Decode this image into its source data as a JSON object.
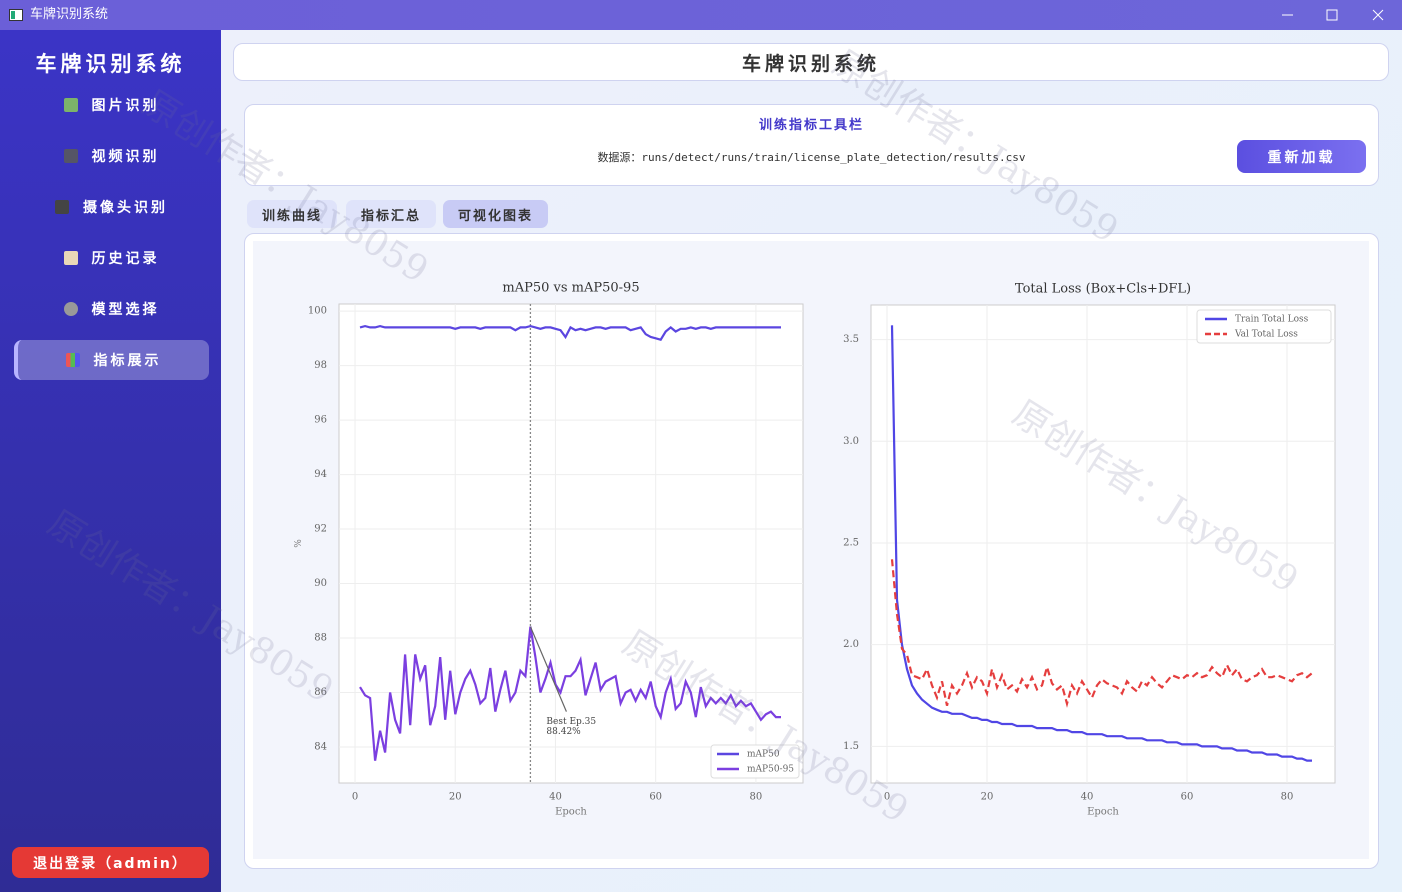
{
  "window": {
    "title": "车牌识别系统"
  },
  "sidebar": {
    "title": "车牌识别系统",
    "menu": [
      "图片识别",
      "视频识别",
      "摄像头识别",
      "历史记录",
      "模型选择",
      "指标展示"
    ],
    "logout": "退出登录（admin）"
  },
  "header": {
    "title": "车牌识别系统"
  },
  "toolbar": {
    "title": "训练指标工具栏",
    "source": "数据源：runs/detect/runs/train/license_plate_detection/results.csv",
    "button": "重新加载"
  },
  "tabs": [
    "训练曲线",
    "指标汇总",
    "可视化图表"
  ],
  "watermark": "原创作者：Jay8059",
  "chart_data": [
    {
      "type": "line",
      "title": "mAP50 vs mAP50-95",
      "xlabel": "Epoch",
      "ylabel": "%",
      "grid": true,
      "legend": "lower right",
      "x": [
        1,
        2,
        3,
        4,
        5,
        6,
        7,
        8,
        9,
        10,
        11,
        12,
        13,
        14,
        15,
        16,
        17,
        18,
        19,
        20,
        21,
        22,
        23,
        24,
        25,
        26,
        27,
        28,
        29,
        30,
        31,
        32,
        33,
        34,
        35,
        36,
        37,
        38,
        39,
        40,
        41,
        42,
        43,
        44,
        45,
        46,
        47,
        48,
        49,
        50,
        51,
        52,
        53,
        54,
        55,
        56,
        57,
        58,
        59,
        60,
        61,
        62,
        63,
        64,
        65,
        66,
        67,
        68,
        69,
        70,
        71,
        72,
        73,
        74,
        75,
        76,
        77,
        78,
        79,
        80,
        81,
        82,
        83,
        84,
        85
      ],
      "xlim": [
        -3.2,
        89.4
      ],
      "xticks": [
        0,
        20,
        40,
        60,
        80
      ],
      "ylim": [
        82.68,
        100.26
      ],
      "yticks": [
        84,
        86,
        88,
        90,
        92,
        94,
        96,
        98,
        100
      ],
      "series": [
        {
          "name": "mAP50",
          "color": "#5b46e0",
          "style": "solid",
          "values": [
            99.4,
            99.45,
            99.4,
            99.4,
            99.45,
            99.4,
            99.4,
            99.4,
            99.4,
            99.4,
            99.4,
            99.4,
            99.4,
            99.4,
            99.4,
            99.4,
            99.4,
            99.4,
            99.4,
            99.35,
            99.4,
            99.4,
            99.4,
            99.4,
            99.35,
            99.4,
            99.4,
            99.4,
            99.4,
            99.4,
            99.4,
            99.3,
            99.4,
            99.4,
            99.45,
            99.4,
            99.35,
            99.4,
            99.4,
            99.35,
            99.3,
            99.05,
            99.4,
            99.3,
            99.35,
            99.3,
            99.35,
            99.4,
            99.4,
            99.35,
            99.4,
            99.4,
            99.4,
            99.4,
            99.3,
            99.35,
            99.4,
            99.15,
            99.05,
            99.0,
            98.95,
            99.25,
            99.4,
            99.25,
            99.35,
            99.35,
            99.4,
            99.35,
            99.4,
            99.4,
            99.35,
            99.4,
            99.4,
            99.4,
            99.4,
            99.4,
            99.4,
            99.4,
            99.4,
            99.4,
            99.4,
            99.4,
            99.4,
            99.4,
            99.4
          ]
        },
        {
          "name": "mAP50-95",
          "color": "#7b3fe0",
          "style": "solid",
          "values": [
            86.2,
            85.9,
            85.8,
            83.5,
            84.6,
            83.8,
            86.0,
            85.0,
            84.5,
            87.4,
            84.8,
            87.4,
            86.5,
            87.0,
            84.8,
            85.5,
            87.3,
            85.0,
            86.8,
            85.2,
            86.0,
            86.5,
            86.8,
            86.3,
            85.6,
            85.8,
            86.9,
            85.3,
            86.1,
            86.8,
            85.7,
            86.0,
            86.8,
            86.6,
            88.42,
            87.3,
            86.0,
            86.5,
            87.1,
            86.3,
            86.0,
            86.6,
            86.6,
            86.8,
            87.2,
            85.9,
            86.5,
            87.1,
            86.1,
            86.4,
            86.5,
            86.6,
            85.6,
            86.0,
            86.1,
            85.7,
            86.1,
            85.8,
            86.4,
            85.5,
            85.1,
            86.0,
            86.5,
            85.4,
            85.6,
            86.4,
            86.0,
            85.1,
            86.2,
            85.5,
            85.8,
            85.6,
            85.8,
            85.6,
            85.9,
            85.5,
            85.7,
            85.5,
            85.6,
            85.3,
            85.0,
            85.2,
            85.3,
            85.1,
            85.1
          ]
        }
      ],
      "vline": 35,
      "annotation": {
        "text": [
          "Best Ep.35",
          "88.42%"
        ],
        "x": 35,
        "y": 88.42
      }
    },
    {
      "type": "line",
      "title": "Total Loss (Box+Cls+DFL)",
      "xlabel": "Epoch",
      "grid": true,
      "legend": "upper right",
      "x": [
        1,
        2,
        3,
        4,
        5,
        6,
        7,
        8,
        9,
        10,
        11,
        12,
        13,
        14,
        15,
        16,
        17,
        18,
        19,
        20,
        21,
        22,
        23,
        24,
        25,
        26,
        27,
        28,
        29,
        30,
        31,
        32,
        33,
        34,
        35,
        36,
        37,
        38,
        39,
        40,
        41,
        42,
        43,
        44,
        45,
        46,
        47,
        48,
        49,
        50,
        51,
        52,
        53,
        54,
        55,
        56,
        57,
        58,
        59,
        60,
        61,
        62,
        63,
        64,
        65,
        66,
        67,
        68,
        69,
        70,
        71,
        72,
        73,
        74,
        75,
        76,
        77,
        78,
        79,
        80,
        81,
        82,
        83,
        84,
        85
      ],
      "xlim": [
        -3.2,
        89.6
      ],
      "xticks": [
        0,
        20,
        40,
        60,
        80
      ],
      "ylim": [
        1.32,
        3.67
      ],
      "yticks": [
        1.5,
        {
          "value": 2,
          "label": "2.0"
        },
        2.5,
        {
          "value": 3,
          "label": "3.0"
        },
        3.5
      ],
      "series": [
        {
          "name": "Train Total Loss",
          "color": "#5046e5",
          "style": "solid",
          "values": [
            3.57,
            2.22,
            2.0,
            1.88,
            1.8,
            1.76,
            1.73,
            1.71,
            1.69,
            1.68,
            1.67,
            1.67,
            1.66,
            1.66,
            1.66,
            1.65,
            1.64,
            1.64,
            1.63,
            1.63,
            1.62,
            1.62,
            1.61,
            1.61,
            1.61,
            1.6,
            1.6,
            1.6,
            1.6,
            1.59,
            1.59,
            1.59,
            1.59,
            1.58,
            1.58,
            1.58,
            1.57,
            1.57,
            1.57,
            1.56,
            1.56,
            1.56,
            1.56,
            1.55,
            1.55,
            1.55,
            1.55,
            1.54,
            1.54,
            1.54,
            1.54,
            1.53,
            1.53,
            1.53,
            1.53,
            1.52,
            1.52,
            1.52,
            1.51,
            1.51,
            1.51,
            1.51,
            1.5,
            1.5,
            1.5,
            1.5,
            1.49,
            1.49,
            1.49,
            1.48,
            1.48,
            1.48,
            1.47,
            1.47,
            1.47,
            1.46,
            1.46,
            1.46,
            1.45,
            1.45,
            1.45,
            1.44,
            1.44,
            1.43,
            1.43
          ]
        },
        {
          "name": "Val Total Loss",
          "color": "#e53e3e",
          "style": "dashed",
          "values": [
            2.42,
            2.15,
            1.98,
            1.95,
            1.85,
            1.84,
            1.83,
            1.88,
            1.8,
            1.74,
            1.82,
            1.7,
            1.8,
            1.76,
            1.8,
            1.86,
            1.79,
            1.84,
            1.82,
            1.76,
            1.88,
            1.79,
            1.85,
            1.78,
            1.8,
            1.77,
            1.83,
            1.79,
            1.84,
            1.78,
            1.8,
            1.89,
            1.81,
            1.78,
            1.8,
            1.71,
            1.8,
            1.76,
            1.82,
            1.78,
            1.74,
            1.8,
            1.83,
            1.81,
            1.8,
            1.79,
            1.76,
            1.82,
            1.79,
            1.77,
            1.82,
            1.8,
            1.84,
            1.81,
            1.79,
            1.82,
            1.85,
            1.84,
            1.83,
            1.85,
            1.84,
            1.86,
            1.84,
            1.85,
            1.89,
            1.86,
            1.84,
            1.9,
            1.85,
            1.88,
            1.83,
            1.82,
            1.84,
            1.85,
            1.88,
            1.84,
            1.84,
            1.85,
            1.84,
            1.83,
            1.82,
            1.85,
            1.86,
            1.84,
            1.86
          ]
        }
      ]
    }
  ]
}
